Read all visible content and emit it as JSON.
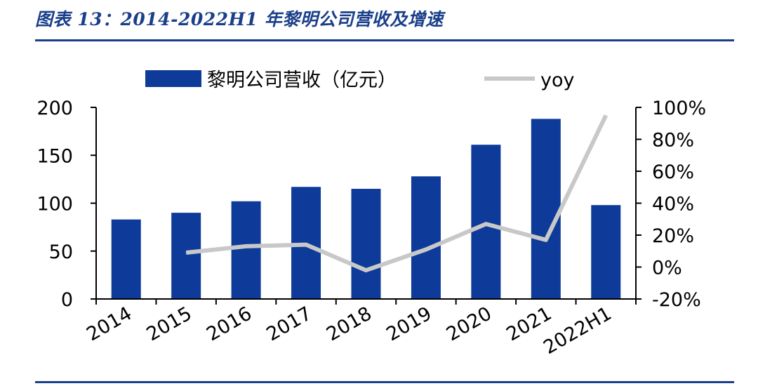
{
  "figure_title": "图表 13：2014-2022H1 年黎明公司营收及增速",
  "chart_data": {
    "type": "bar",
    "title": "",
    "categories": [
      "2014",
      "2015",
      "2016",
      "2017",
      "2018",
      "2019",
      "2020",
      "2021",
      "2022H1"
    ],
    "series": [
      {
        "name": "黎明公司营收（亿元）",
        "type": "bar",
        "axis": "left",
        "color": "#0e3a9a",
        "values": [
          83,
          90,
          102,
          117,
          115,
          128,
          161,
          188,
          98
        ]
      },
      {
        "name": "yoy",
        "type": "line",
        "axis": "right",
        "color": "#c8c8c8",
        "values": [
          null,
          9,
          13,
          14,
          -2,
          11,
          27,
          17,
          95
        ]
      }
    ],
    "y_left": {
      "min": 0,
      "max": 200,
      "ticks": [
        0,
        50,
        100,
        150,
        200
      ],
      "tick_labels": [
        "0",
        "50",
        "100",
        "150",
        "200"
      ]
    },
    "y_right": {
      "min": -20,
      "max": 100,
      "ticks": [
        -20,
        0,
        20,
        40,
        60,
        80,
        100
      ],
      "tick_labels": [
        "-20%",
        "0%",
        "20%",
        "40%",
        "60%",
        "80%",
        "100%"
      ]
    },
    "legend": {
      "placement": "top"
    },
    "grid": false
  }
}
